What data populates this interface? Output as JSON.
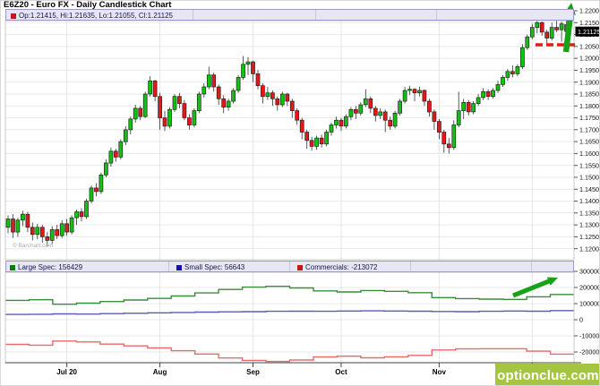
{
  "title": "E6Z20 - Euro FX - Daily Candlestick Chart",
  "main_panel": {
    "ohlc_label": "Op:1.21415, Hi:1.21635, Lo:1.21055, Cl:1.21125",
    "last_price_box": "1.21125",
    "watermark": "© Barchart.com"
  },
  "cot_panel": {
    "legend": [
      {
        "label": "Large Spec: 156429",
        "swatch": "#0a800a"
      },
      {
        "label": "Small Spec: 56643",
        "swatch": "#1515a8"
      },
      {
        "label": "Commercials: -213072",
        "swatch": "#cc1414"
      }
    ]
  },
  "branding": {
    "logo_text": "optionclue.com",
    "logo_bg": "#a3c53f"
  },
  "colors": {
    "candle_up": "#0ec40e",
    "candle_down": "#e81717",
    "candle_border": "#222222",
    "wick": "#333333",
    "grid": "#e9e9e9",
    "panel_border": "#c8c8c8",
    "axis_line": "#444444",
    "support_line": "#e31b1b",
    "arrow": "#17a217",
    "legend_swatch_ohlc": "#cc1414"
  },
  "chart_data": [
    {
      "type": "candlestick",
      "title": "E6Z20 - Euro FX - Daily Candlestick Chart",
      "last_ohlc": {
        "open": 1.21415,
        "high": 1.21635,
        "low": 1.21055,
        "close": 1.21125
      },
      "y_axis": {
        "min": 1.12,
        "max": 1.22,
        "step": 0.005,
        "decimals": 5
      },
      "x_ticks": [
        {
          "i": 12,
          "label": "Jul 20"
        },
        {
          "i": 31,
          "label": "Aug"
        },
        {
          "i": 50,
          "label": "Sep"
        },
        {
          "i": 68,
          "label": "Oct"
        },
        {
          "i": 88,
          "label": "Nov"
        },
        {
          "i": 107,
          "label": ""
        }
      ],
      "support_line": {
        "price": 1.2057,
        "style": "dashed"
      },
      "annotations": [
        "up-arrow-breakout"
      ],
      "candles_ohlc": [
        [
          1.129,
          1.134,
          1.1265,
          1.1325
        ],
        [
          1.1325,
          1.1345,
          1.1245,
          1.127
        ],
        [
          1.127,
          1.133,
          1.125,
          1.132
        ],
        [
          1.132,
          1.136,
          1.1295,
          1.1345
        ],
        [
          1.1345,
          1.1355,
          1.127,
          1.129
        ],
        [
          1.129,
          1.131,
          1.1235,
          1.126
        ],
        [
          1.126,
          1.1305,
          1.124,
          1.129
        ],
        [
          1.129,
          1.13,
          1.1225,
          1.125
        ],
        [
          1.125,
          1.127,
          1.121,
          1.1235
        ],
        [
          1.1235,
          1.1295,
          1.122,
          1.128
        ],
        [
          1.128,
          1.13,
          1.124,
          1.1255
        ],
        [
          1.1255,
          1.132,
          1.1245,
          1.1305
        ],
        [
          1.1305,
          1.1325,
          1.1255,
          1.127
        ],
        [
          1.127,
          1.134,
          1.126,
          1.133
        ],
        [
          1.133,
          1.1365,
          1.13,
          1.1355
        ],
        [
          1.1355,
          1.137,
          1.1315,
          1.1335
        ],
        [
          1.1335,
          1.141,
          1.1325,
          1.14
        ],
        [
          1.14,
          1.1465,
          1.139,
          1.1455
        ],
        [
          1.1455,
          1.1475,
          1.142,
          1.144
        ],
        [
          1.144,
          1.152,
          1.143,
          1.151
        ],
        [
          1.151,
          1.1575,
          1.15,
          1.156
        ],
        [
          1.156,
          1.1625,
          1.1545,
          1.161
        ],
        [
          1.161,
          1.162,
          1.1565,
          1.1585
        ],
        [
          1.1585,
          1.166,
          1.1575,
          1.165
        ],
        [
          1.165,
          1.1715,
          1.1635,
          1.17
        ],
        [
          1.17,
          1.1755,
          1.168,
          1.1745
        ],
        [
          1.1745,
          1.1805,
          1.173,
          1.179
        ],
        [
          1.179,
          1.18,
          1.174,
          1.1755
        ],
        [
          1.1755,
          1.186,
          1.175,
          1.185
        ],
        [
          1.185,
          1.1925,
          1.184,
          1.1905
        ],
        [
          1.1905,
          1.191,
          1.182,
          1.184
        ],
        [
          1.184,
          1.1855,
          1.17,
          1.175
        ],
        [
          1.175,
          1.178,
          1.1695,
          1.1715
        ],
        [
          1.1715,
          1.1795,
          1.1705,
          1.1785
        ],
        [
          1.1785,
          1.185,
          1.1775,
          1.184
        ],
        [
          1.184,
          1.1855,
          1.179,
          1.181
        ],
        [
          1.181,
          1.1825,
          1.174,
          1.175
        ],
        [
          1.175,
          1.1765,
          1.17,
          1.172
        ],
        [
          1.172,
          1.179,
          1.171,
          1.178
        ],
        [
          1.178,
          1.186,
          1.177,
          1.185
        ],
        [
          1.185,
          1.1895,
          1.1835,
          1.188
        ],
        [
          1.188,
          1.1965,
          1.187,
          1.193
        ],
        [
          1.193,
          1.194,
          1.186,
          1.188
        ],
        [
          1.188,
          1.189,
          1.1805,
          1.183
        ],
        [
          1.183,
          1.1845,
          1.177,
          1.1795
        ],
        [
          1.1795,
          1.183,
          1.178,
          1.182
        ],
        [
          1.182,
          1.1875,
          1.181,
          1.1865
        ],
        [
          1.1865,
          1.193,
          1.1855,
          1.192
        ],
        [
          1.192,
          1.201,
          1.191,
          1.1975
        ],
        [
          1.1975,
          1.2005,
          1.193,
          1.1985
        ],
        [
          1.1985,
          1.199,
          1.19,
          1.1935
        ],
        [
          1.1935,
          1.195,
          1.187,
          1.1885
        ],
        [
          1.1885,
          1.1895,
          1.181,
          1.184
        ],
        [
          1.184,
          1.188,
          1.1825,
          1.1855
        ],
        [
          1.1855,
          1.1865,
          1.18,
          1.183
        ],
        [
          1.183,
          1.184,
          1.178,
          1.1805
        ],
        [
          1.1805,
          1.186,
          1.1795,
          1.185
        ],
        [
          1.185,
          1.1855,
          1.18,
          1.182
        ],
        [
          1.182,
          1.183,
          1.175,
          1.178
        ],
        [
          1.178,
          1.179,
          1.172,
          1.174
        ],
        [
          1.174,
          1.175,
          1.166,
          1.169
        ],
        [
          1.169,
          1.17,
          1.162,
          1.1655
        ],
        [
          1.1655,
          1.167,
          1.1612,
          1.163
        ],
        [
          1.163,
          1.1675,
          1.1615,
          1.1665
        ],
        [
          1.1665,
          1.168,
          1.1625,
          1.164
        ],
        [
          1.164,
          1.17,
          1.163,
          1.169
        ],
        [
          1.169,
          1.173,
          1.1675,
          1.172
        ],
        [
          1.172,
          1.1755,
          1.1705,
          1.174
        ],
        [
          1.174,
          1.175,
          1.1695,
          1.1715
        ],
        [
          1.1715,
          1.1765,
          1.1705,
          1.1755
        ],
        [
          1.1755,
          1.1795,
          1.174,
          1.1785
        ],
        [
          1.1785,
          1.18,
          1.1745,
          1.177
        ],
        [
          1.177,
          1.1815,
          1.176,
          1.1805
        ],
        [
          1.1805,
          1.187,
          1.1795,
          1.183
        ],
        [
          1.183,
          1.184,
          1.177,
          1.179
        ],
        [
          1.179,
          1.18,
          1.1735,
          1.176
        ],
        [
          1.176,
          1.179,
          1.1745,
          1.1775
        ],
        [
          1.1775,
          1.1785,
          1.169,
          1.174
        ],
        [
          1.174,
          1.1755,
          1.17,
          1.1715
        ],
        [
          1.1715,
          1.178,
          1.1705,
          1.177
        ],
        [
          1.177,
          1.183,
          1.176,
          1.182
        ],
        [
          1.182,
          1.188,
          1.181,
          1.1865
        ],
        [
          1.1865,
          1.1885,
          1.1845,
          1.187
        ],
        [
          1.187,
          1.1875,
          1.182,
          1.1855
        ],
        [
          1.1855,
          1.188,
          1.184,
          1.1865
        ],
        [
          1.1865,
          1.187,
          1.18,
          1.182
        ],
        [
          1.182,
          1.183,
          1.1755,
          1.1775
        ],
        [
          1.1775,
          1.1785,
          1.17,
          1.1735
        ],
        [
          1.1735,
          1.1745,
          1.166,
          1.169
        ],
        [
          1.169,
          1.17,
          1.1603,
          1.164
        ],
        [
          1.164,
          1.1665,
          1.16,
          1.1625
        ],
        [
          1.1625,
          1.174,
          1.1615,
          1.172
        ],
        [
          1.172,
          1.186,
          1.171,
          1.178
        ],
        [
          1.178,
          1.183,
          1.1745,
          1.1815
        ],
        [
          1.1815,
          1.1825,
          1.176,
          1.1775
        ],
        [
          1.1775,
          1.182,
          1.1765,
          1.181
        ],
        [
          1.181,
          1.185,
          1.18,
          1.1835
        ],
        [
          1.1835,
          1.1875,
          1.1825,
          1.186
        ],
        [
          1.186,
          1.187,
          1.1825,
          1.184
        ],
        [
          1.184,
          1.1875,
          1.183,
          1.1865
        ],
        [
          1.1865,
          1.1905,
          1.1855,
          1.189
        ],
        [
          1.189,
          1.193,
          1.188,
          1.192
        ],
        [
          1.192,
          1.1955,
          1.1905,
          1.1945
        ],
        [
          1.1945,
          1.197,
          1.192,
          1.1935
        ],
        [
          1.1935,
          1.1975,
          1.1925,
          1.1965
        ],
        [
          1.1965,
          1.206,
          1.1955,
          1.2045
        ],
        [
          1.2045,
          1.21,
          1.2035,
          1.209
        ],
        [
          1.209,
          1.2145,
          1.208,
          1.213
        ],
        [
          1.213,
          1.216,
          1.2105,
          1.215
        ],
        [
          1.215,
          1.2155,
          1.2095,
          1.211
        ],
        [
          1.211,
          1.212,
          1.2055,
          1.2085
        ],
        [
          1.2085,
          1.215,
          1.2075,
          1.213
        ],
        [
          1.213,
          1.216,
          1.211,
          1.212
        ],
        [
          1.212,
          1.2155,
          1.207,
          1.2145
        ],
        [
          1.21415,
          1.21635,
          1.21055,
          1.21125
        ]
      ]
    },
    {
      "type": "step-line",
      "title": "COT net positions",
      "x_unit": "week",
      "y_axis": {
        "min": -200000,
        "max": 300000,
        "step": 100000
      },
      "annotations": [
        "up-arrow-large-spec"
      ],
      "series": [
        {
          "name": "Large Spec",
          "current": 156429,
          "color": "#3c8c3c",
          "weekly": [
            120000,
            124000,
            96000,
            103000,
            113000,
            122000,
            132000,
            147000,
            166000,
            188000,
            202000,
            207000,
            197000,
            179000,
            172000,
            181000,
            176000,
            168000,
            137000,
            131000,
            128000,
            126000,
            142000,
            156429
          ]
        },
        {
          "name": "Small Spec",
          "current": 56643,
          "color": "#5b5bb8",
          "weekly": [
            33000,
            34000,
            36000,
            35000,
            38000,
            40000,
            43000,
            45000,
            47000,
            49000,
            50000,
            52000,
            53000,
            52000,
            54000,
            55000,
            54000,
            53000,
            51000,
            50000,
            52000,
            54000,
            53000,
            56643
          ]
        },
        {
          "name": "Commercials",
          "current": -213072,
          "color": "#ea6a6a",
          "weekly": [
            -153000,
            -158000,
            -132000,
            -138000,
            -151000,
            -162000,
            -175000,
            -192000,
            -213000,
            -237000,
            -252000,
            -259000,
            -250000,
            -231000,
            -226000,
            -236000,
            -230000,
            -221000,
            -188000,
            -181000,
            -180000,
            -180000,
            -195000,
            -213072
          ]
        }
      ]
    }
  ]
}
